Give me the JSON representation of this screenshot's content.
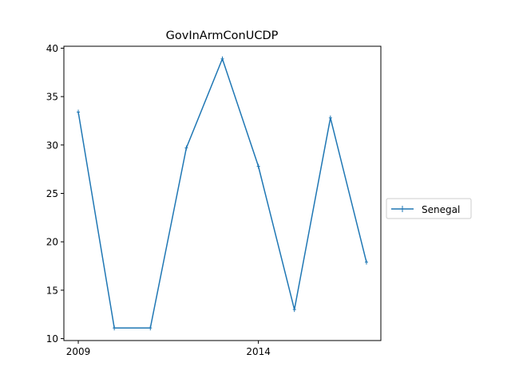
{
  "chart_data": {
    "type": "line",
    "title": "GovInArmConUCDP",
    "xlabel": "",
    "ylabel": "",
    "x": [
      2009,
      2010,
      2011,
      2012,
      2013,
      2014,
      2015,
      2016,
      2017
    ],
    "series": [
      {
        "name": "Senegal",
        "values": [
          33.4,
          11.1,
          11.1,
          29.7,
          38.9,
          27.8,
          13.0,
          32.8,
          17.9
        ],
        "color": "#1f77b4",
        "marker": "plus"
      }
    ],
    "xlim": [
      2008.6,
      2017.4
    ],
    "ylim": [
      9.8,
      40.2
    ],
    "xticks": [
      2009,
      2014
    ],
    "xtick_labels": [
      "2009",
      "2014"
    ],
    "yticks": [
      10,
      15,
      20,
      25,
      30,
      35,
      40
    ],
    "ytick_labels": [
      "10",
      "15",
      "20",
      "25",
      "30",
      "35",
      "40"
    ],
    "grid": false,
    "legend": {
      "placement": "outside-right",
      "entries": [
        "Senegal"
      ]
    }
  }
}
